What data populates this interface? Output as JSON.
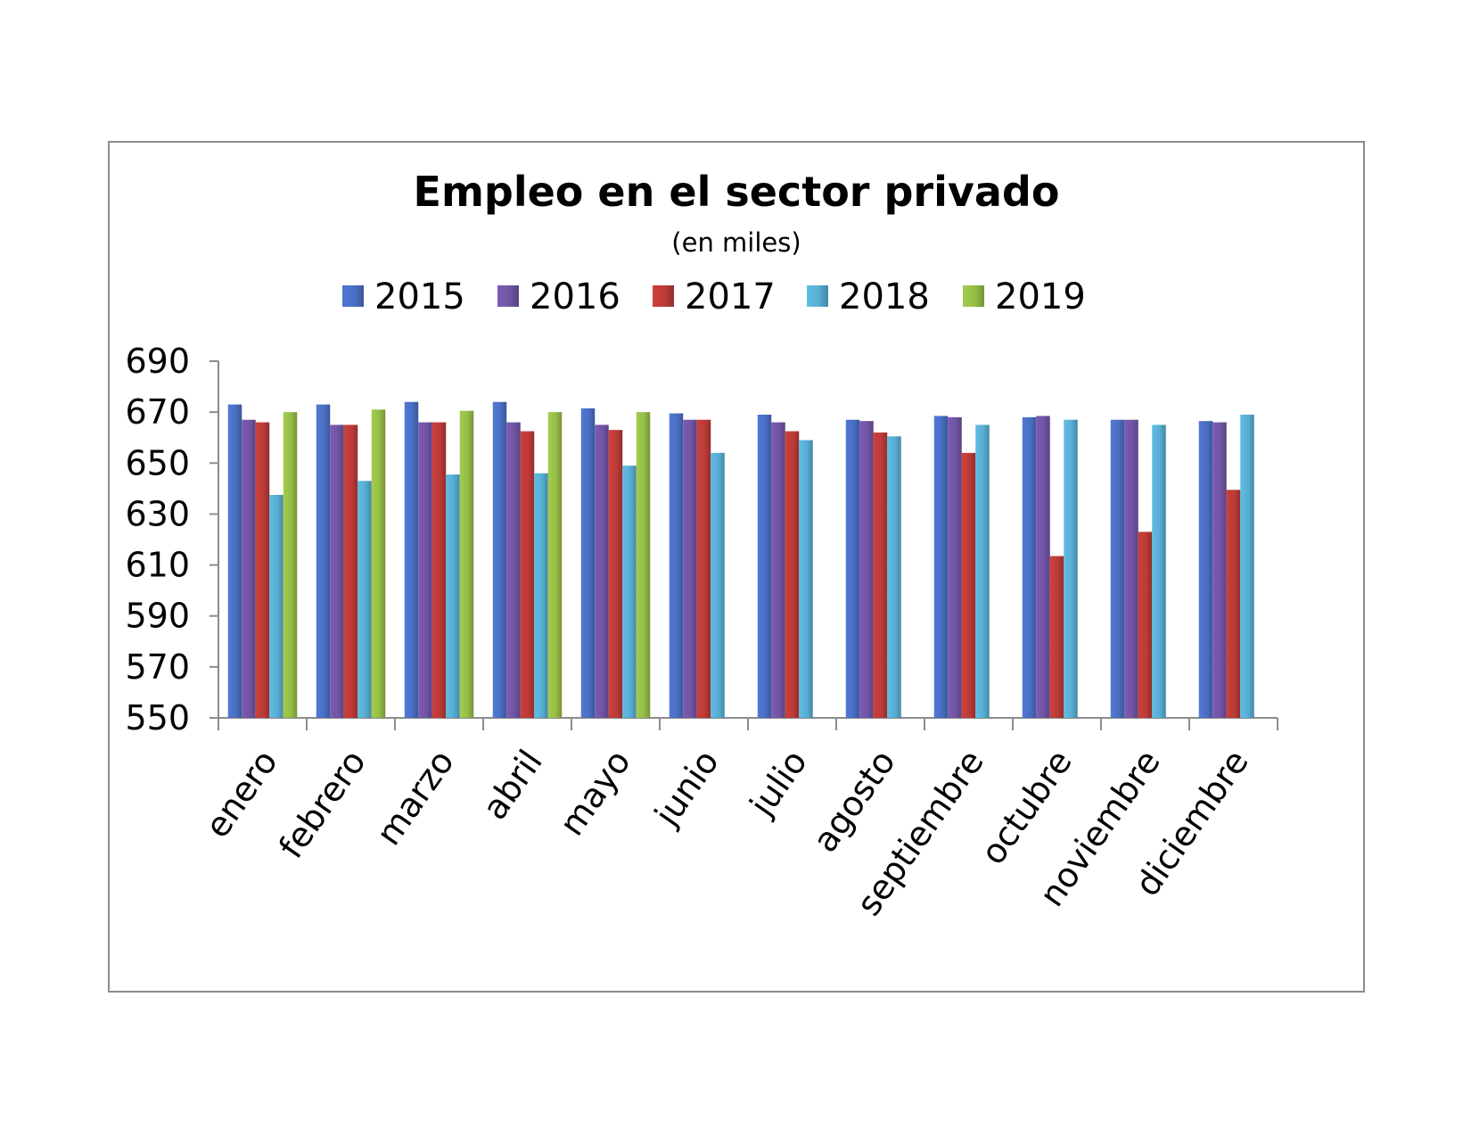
{
  "chart_data": {
    "type": "bar",
    "title": "Empleo en el sector privado",
    "subtitle": "(en miles)",
    "xlabel": "",
    "ylabel": "",
    "ylim": [
      550,
      690
    ],
    "yticks": [
      550,
      570,
      590,
      610,
      630,
      650,
      670,
      690
    ],
    "grid": false,
    "legend_position": "top",
    "categories": [
      "enero",
      "febrero",
      "marzo",
      "abril",
      "mayo",
      "junio",
      "julio",
      "agosto",
      "septiembre",
      "octubre",
      "noviembre",
      "diciembre"
    ],
    "series": [
      {
        "name": "2015",
        "color": "#4a6fc4",
        "values": [
          673,
          673,
          674,
          674,
          671.5,
          669.5,
          669,
          667,
          668.5,
          668,
          667,
          666.5
        ]
      },
      {
        "name": "2016",
        "color": "#7254a5",
        "values": [
          667,
          665,
          666,
          666,
          665,
          667,
          666,
          666.5,
          668,
          668.5,
          667,
          666
        ]
      },
      {
        "name": "2017",
        "color": "#bd3b38",
        "values": [
          666,
          665,
          666,
          662.5,
          663,
          667,
          662.5,
          662,
          654,
          613.5,
          623,
          639.5
        ]
      },
      {
        "name": "2018",
        "color": "#58aed3",
        "values": [
          637.5,
          643,
          645.5,
          646,
          649,
          654,
          659,
          660.5,
          665,
          667,
          665,
          669
        ]
      },
      {
        "name": "2019",
        "color": "#96bd47",
        "values": [
          670,
          671,
          670.5,
          670,
          670,
          null,
          null,
          null,
          null,
          null,
          null,
          null
        ]
      }
    ]
  }
}
